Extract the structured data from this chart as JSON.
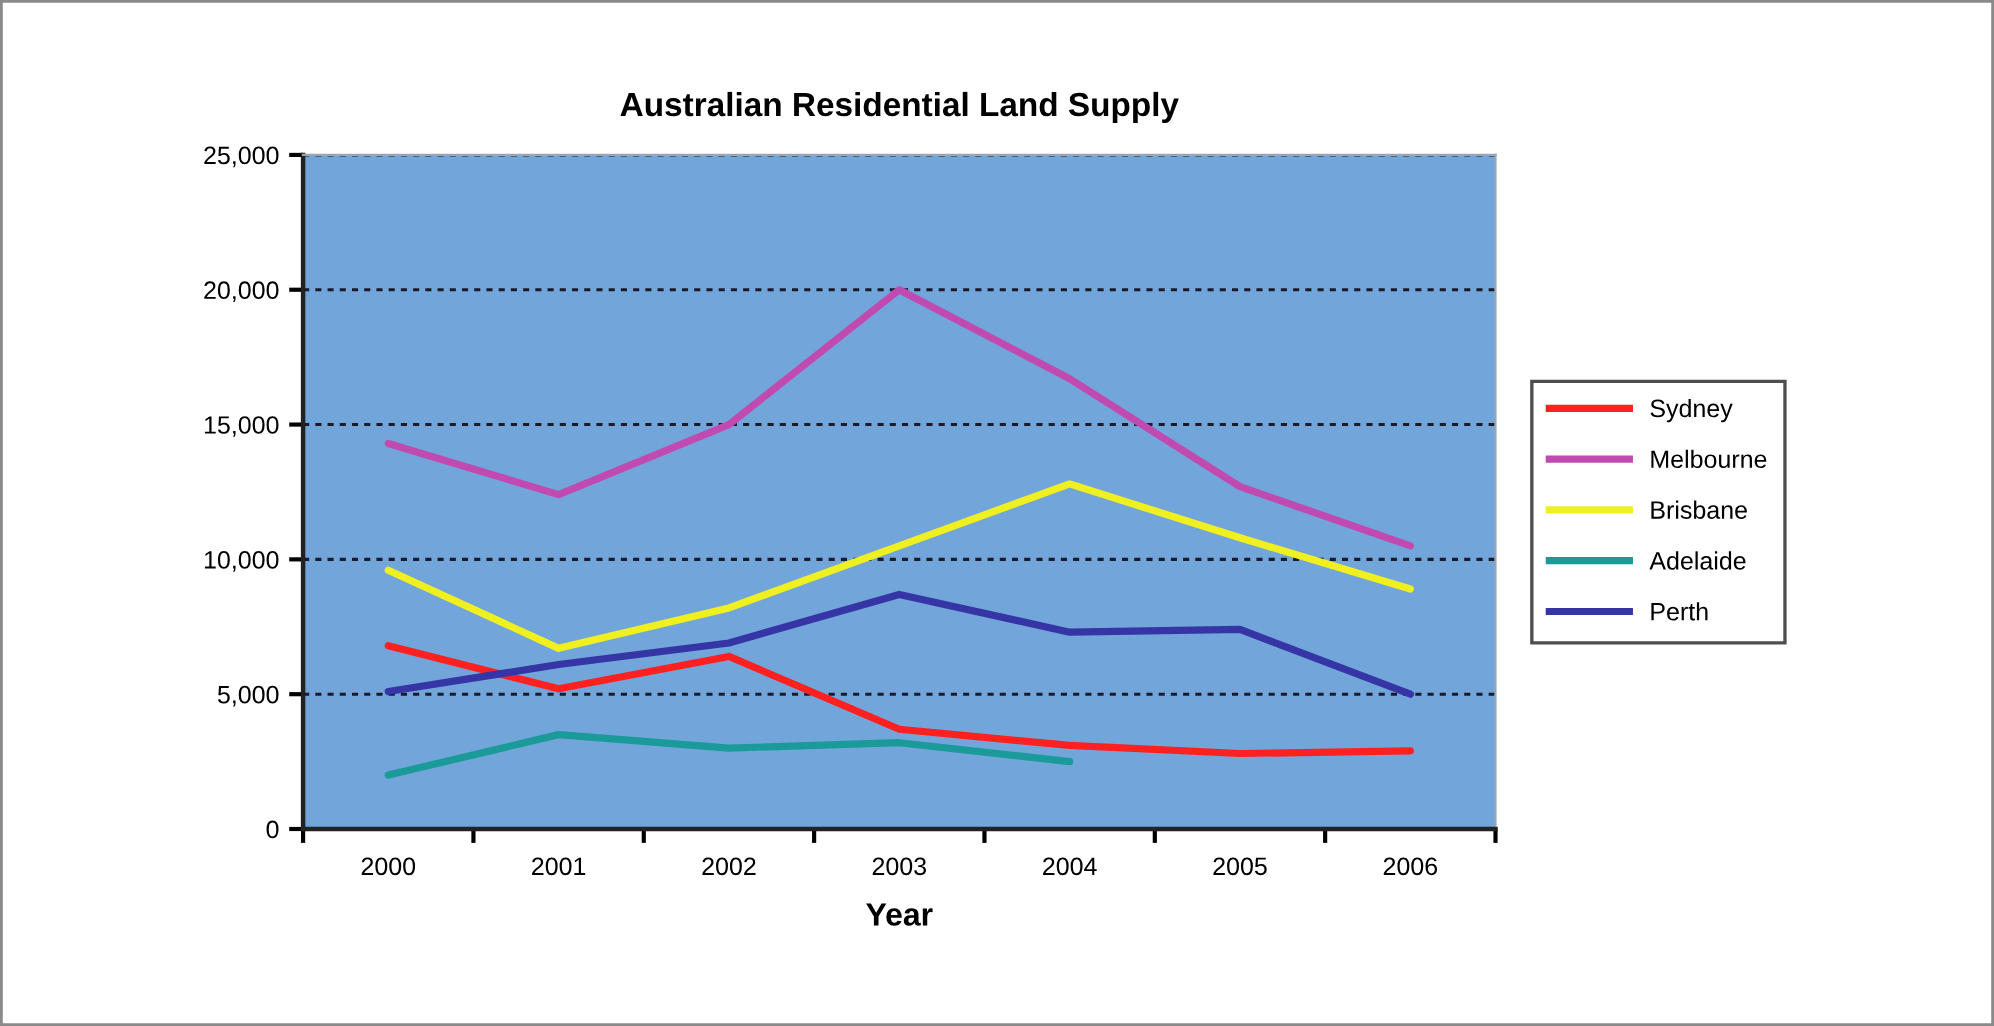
{
  "chart_data": {
    "type": "line",
    "title": "Australian Residential Land Supply",
    "xlabel": "Year",
    "categories": [
      "2000",
      "2001",
      "2002",
      "2003",
      "2004",
      "2005",
      "2006"
    ],
    "series": [
      {
        "name": "Sydney",
        "color": "#ff2020",
        "values": [
          6800,
          5200,
          6400,
          3700,
          3100,
          2800,
          2900
        ]
      },
      {
        "name": "Melbourne",
        "color": "#c04ab0",
        "values": [
          14300,
          12400,
          15000,
          20000,
          16700,
          12700,
          10500
        ]
      },
      {
        "name": "Brisbane",
        "color": "#f0f020",
        "values": [
          9600,
          6700,
          8200,
          10500,
          12800,
          10800,
          8900
        ]
      },
      {
        "name": "Adelaide",
        "color": "#1a9a98",
        "values": [
          2000,
          3500,
          3000,
          3200,
          2500,
          null,
          null
        ]
      },
      {
        "name": "Perth",
        "color": "#3535a5",
        "values": [
          5100,
          6100,
          6900,
          8700,
          7300,
          7400,
          5000
        ]
      }
    ],
    "ylim": [
      0,
      25000
    ],
    "yticks": [
      0,
      {
        "value": 5000,
        "label": "5,000"
      },
      {
        "value": 10000,
        "label": "10,000"
      },
      {
        "value": 15000,
        "label": "15,000"
      },
      {
        "value": 20000,
        "label": "20,000"
      },
      {
        "value": 25000,
        "label": "25,000"
      }
    ],
    "grid": "y",
    "legend": "right",
    "marker": "none",
    "line_style": "solid"
  }
}
